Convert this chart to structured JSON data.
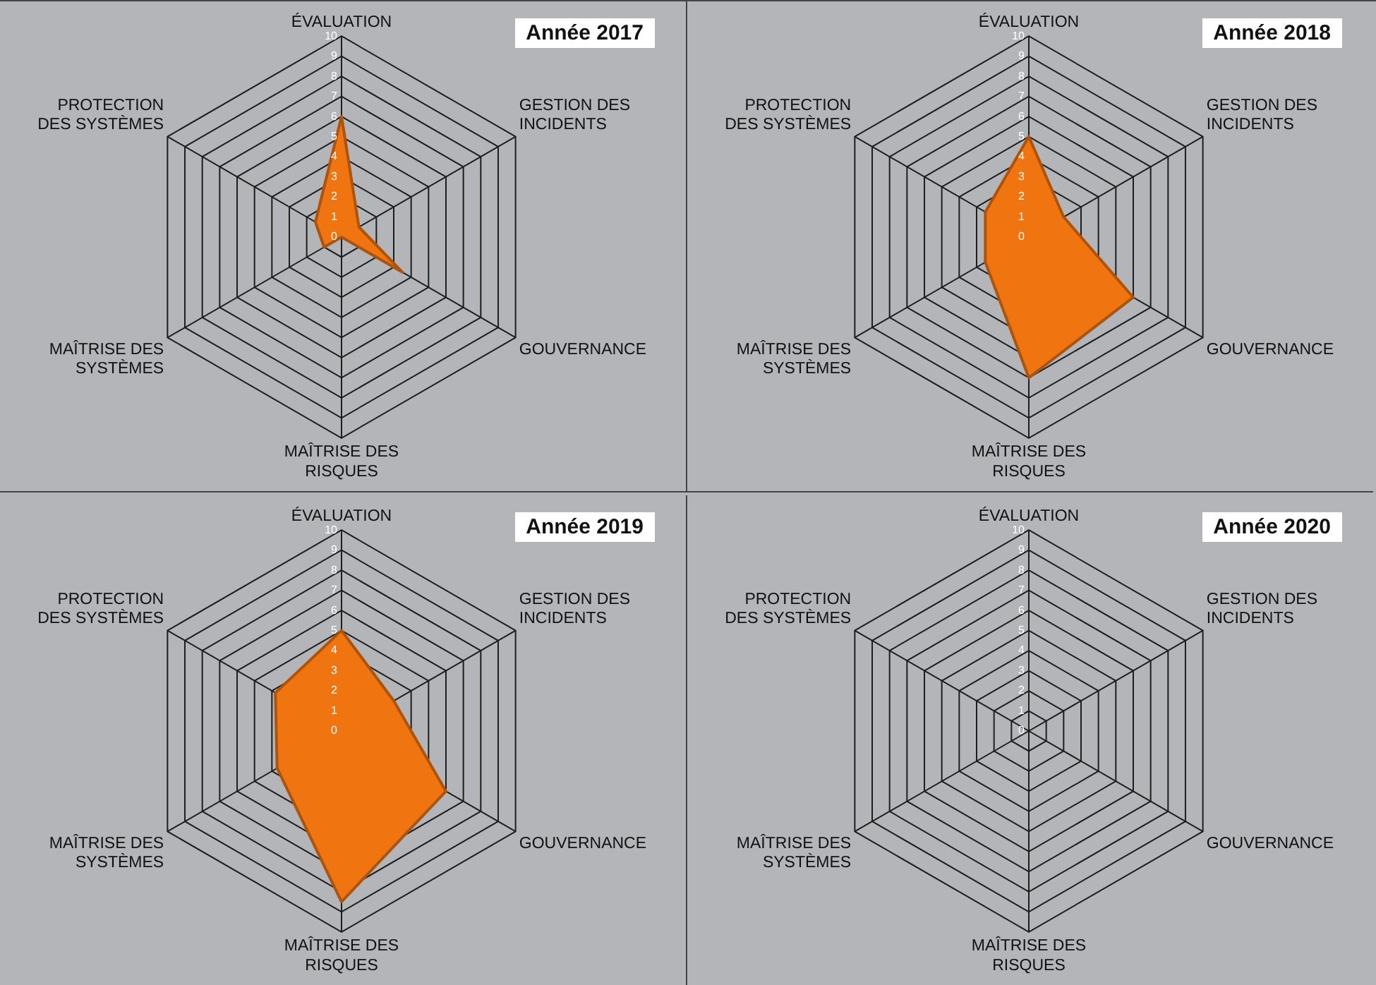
{
  "chart_data": [
    {
      "type": "radar",
      "title": "Année 2017",
      "categories": [
        "ÉVALUATION",
        "GESTION DES INCIDENTS",
        "GOUVERNANCE",
        "MAÎTRISE DES RISQUES",
        "MAÎTRISE DES SYSTÈMES",
        "PROTECTION DES SYSTÈMES"
      ],
      "series": [
        {
          "color": "#f07511",
          "values": [
            6,
            1,
            3.5,
            0,
            1,
            1.5
          ]
        }
      ],
      "ylim": [
        0,
        10
      ],
      "yticks": [
        0,
        1,
        2,
        3,
        4,
        5,
        6,
        7,
        8,
        9,
        10
      ],
      "grid": true,
      "legend": false,
      "marker": "none"
    },
    {
      "type": "radar",
      "title": "Année 2018",
      "categories": [
        "ÉVALUATION",
        "GESTION DES INCIDENTS",
        "GOUVERNANCE",
        "MAÎTRISE DES RISQUES",
        "MAÎTRISE DES SYSTÈMES",
        "PROTECTION DES SYSTÈMES"
      ],
      "series": [
        {
          "color": "#f07511",
          "values": [
            5,
            2,
            6,
            7,
            2.5,
            2.5
          ]
        }
      ],
      "ylim": [
        0,
        10
      ],
      "yticks": [
        0,
        1,
        2,
        3,
        4,
        5,
        6,
        7,
        8,
        9,
        10
      ],
      "grid": true,
      "legend": false,
      "marker": "none"
    },
    {
      "type": "radar",
      "title": "Année 2019",
      "categories": [
        "ÉVALUATION",
        "GESTION DES INCIDENTS",
        "GOUVERNANCE",
        "MAÎTRISE DES RISQUES",
        "MAÎTRISE DES SYSTÈMES",
        "PROTECTION DES SYSTÈMES"
      ],
      "series": [
        {
          "color": "#f07511",
          "values": [
            5,
            3,
            6,
            8.5,
            3.7,
            3.8
          ]
        }
      ],
      "ylim": [
        0,
        10
      ],
      "yticks": [
        0,
        1,
        2,
        3,
        4,
        5,
        6,
        7,
        8,
        9,
        10
      ],
      "grid": true,
      "legend": false,
      "marker": "none"
    },
    {
      "type": "radar",
      "title": "Année 2020",
      "categories": [
        "ÉVALUATION",
        "GESTION DES INCIDENTS",
        "GOUVERNANCE",
        "MAÎTRISE DES RISQUES",
        "MAÎTRISE DES SYSTÈMES",
        "PROTECTION DES SYSTÈMES"
      ],
      "ylim": [
        0,
        10
      ],
      "yticks": [
        0,
        1,
        2,
        3,
        4,
        5,
        6,
        7,
        8,
        9,
        10
      ],
      "grid": true,
      "legend": false,
      "marker": "none"
    }
  ]
}
